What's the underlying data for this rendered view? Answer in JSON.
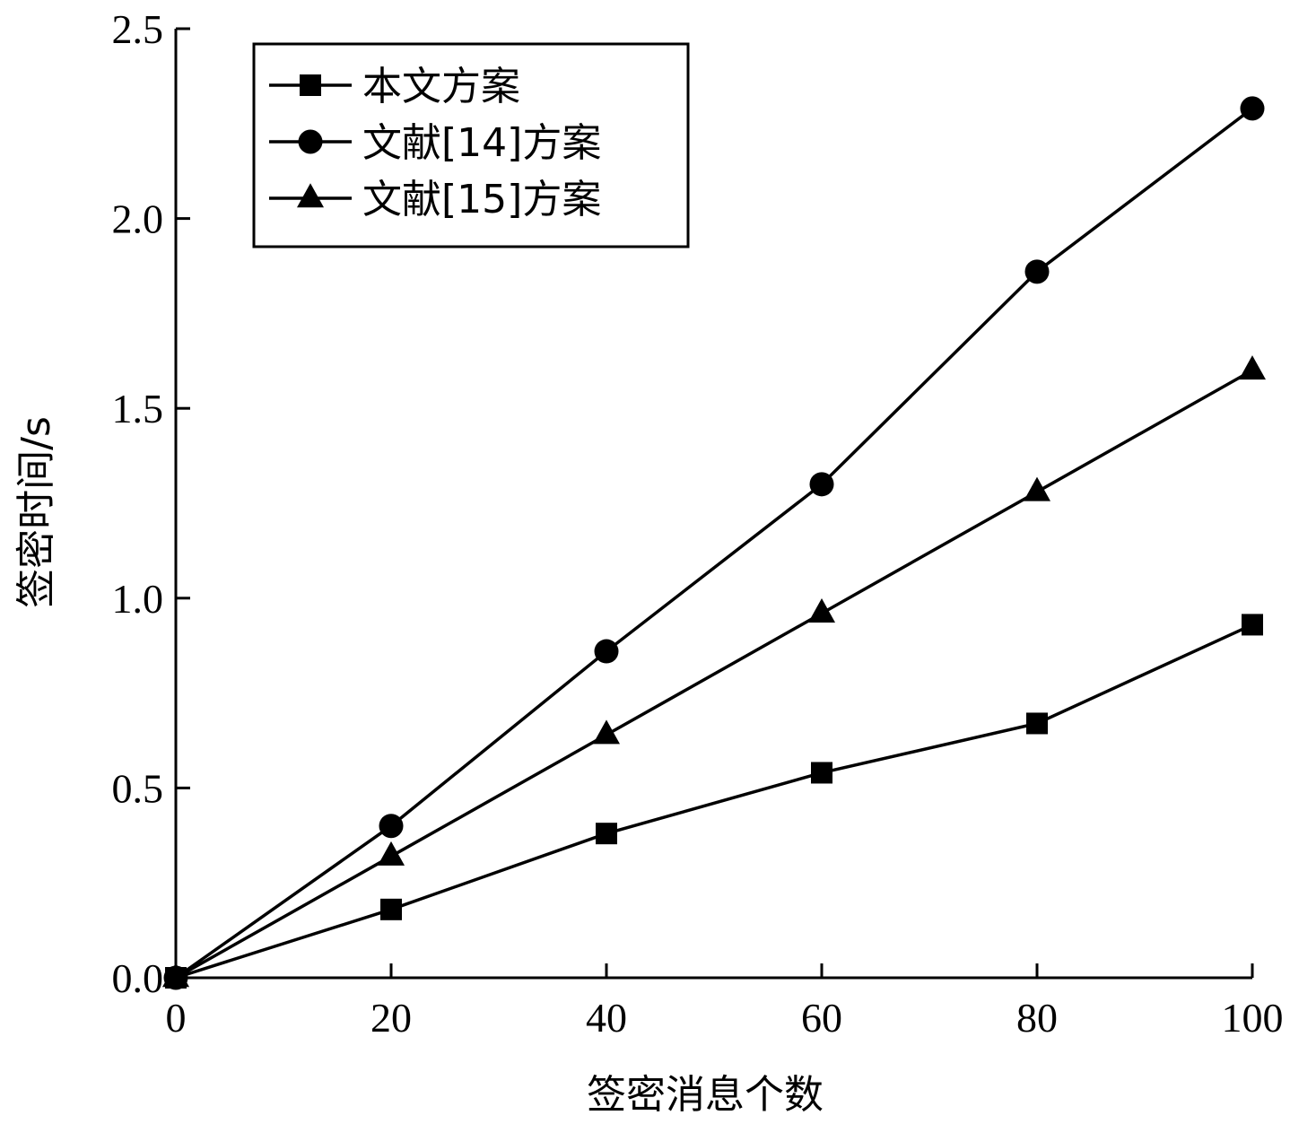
{
  "chart_data": {
    "type": "line",
    "xlabel": "签密消息个数",
    "ylabel": "签密时间/s",
    "xlim": [
      0,
      100
    ],
    "ylim": [
      0,
      2.5
    ],
    "x_ticks": [
      "0",
      "20",
      "40",
      "60",
      "80",
      "100"
    ],
    "y_ticks": [
      "0.0",
      "0.5",
      "1.0",
      "1.5",
      "2.0",
      "2.5"
    ],
    "grid": false,
    "legend_position": "top-left",
    "x": [
      0,
      20,
      40,
      60,
      80,
      100
    ],
    "series": [
      {
        "name": "本文方案",
        "marker": "square",
        "values": [
          0,
          0.18,
          0.38,
          0.54,
          0.67,
          0.93
        ]
      },
      {
        "name": "文献[14]方案",
        "marker": "circle",
        "values": [
          0,
          0.4,
          0.86,
          1.3,
          1.86,
          2.29
        ]
      },
      {
        "name": "文献[15]方案",
        "marker": "triangle",
        "values": [
          0,
          0.32,
          0.64,
          0.96,
          1.28,
          1.6
        ]
      }
    ],
    "colors": {
      "line": "#000000",
      "marker": "#000000"
    }
  }
}
